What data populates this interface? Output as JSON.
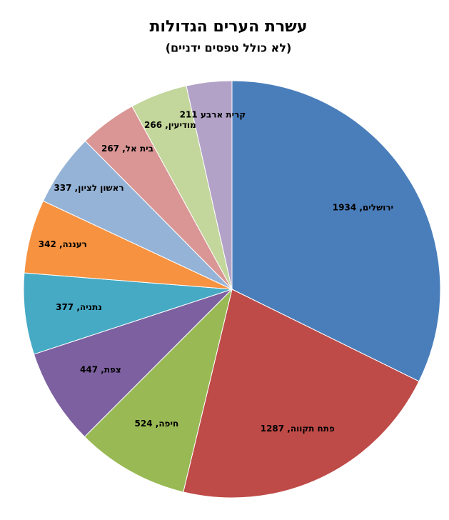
{
  "chart_data": {
    "type": "pie",
    "title": "עשרת הערים הגדולות",
    "subtitle": "(לא כולל טפסים ידניים)",
    "values": [
      1934,
      1287,
      524,
      447,
      377,
      342,
      337,
      267,
      266,
      211
    ],
    "value_labels": [
      "ירושלים, 1934",
      "פתח תקווה, 1287",
      "חיפה, 524",
      "צפת, 447",
      "נתניה, 377",
      "רעננה, 342",
      "ראשון לציון, 337",
      "בית אל, 267",
      "מודיעין, 266",
      "קרית ארבע 211"
    ],
    "colors": [
      "#4a7ebb",
      "#be4b48",
      "#98b954",
      "#7d60a0",
      "#46aac5",
      "#f69240",
      "#95b3d7",
      "#d99694",
      "#c3d69b",
      "#b3a2c7"
    ]
  }
}
